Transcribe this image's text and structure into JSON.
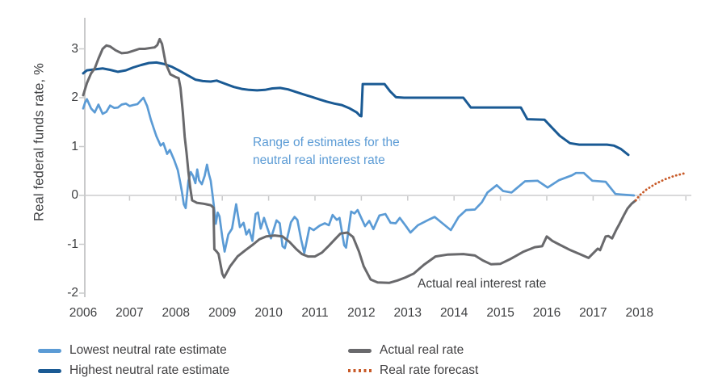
{
  "chart_data": {
    "type": "line",
    "title": "",
    "ylabel": "Real federal funds rate, %",
    "xlabel": "",
    "y_ticks": [
      3,
      2,
      1,
      0,
      -1,
      -2
    ],
    "x_ticks": [
      2006,
      2007,
      2008,
      2009,
      2010,
      2011,
      2012,
      2013,
      2014,
      2015,
      2016,
      2017,
      2018
    ],
    "ylim": [
      -2.2,
      3.3
    ],
    "xlim": [
      2006,
      2019.1
    ],
    "grid": "zero-line-only",
    "legend_position": "bottom",
    "colors": {
      "axis": "#c9cacb",
      "grid": "#d9d9da"
    },
    "annotations": [
      {
        "id": "range",
        "color": "#5b9bd5",
        "lines": [
          "Range of estimates for the",
          "neutral real interest rate"
        ]
      },
      {
        "id": "actual",
        "color": "#3f4042",
        "lines": [
          "Actual real interest rate"
        ]
      }
    ],
    "series": [
      {
        "id": "lowest",
        "name": "Lowest neutral rate estimate",
        "color": "#5b9bd5",
        "style": "solid",
        "width": 2.7,
        "points": [
          [
            2006.0,
            1.78
          ],
          [
            2006.04,
            1.9
          ],
          [
            2006.08,
            1.97
          ],
          [
            2006.17,
            1.78
          ],
          [
            2006.25,
            1.7
          ],
          [
            2006.33,
            1.86
          ],
          [
            2006.42,
            1.67
          ],
          [
            2006.5,
            1.71
          ],
          [
            2006.58,
            1.84
          ],
          [
            2006.67,
            1.79
          ],
          [
            2006.75,
            1.8
          ],
          [
            2006.83,
            1.86
          ],
          [
            2006.92,
            1.88
          ],
          [
            2007.0,
            1.83
          ],
          [
            2007.08,
            1.85
          ],
          [
            2007.17,
            1.87
          ],
          [
            2007.25,
            1.95
          ],
          [
            2007.3,
            2.0
          ],
          [
            2007.38,
            1.83
          ],
          [
            2007.46,
            1.55
          ],
          [
            2007.52,
            1.38
          ],
          [
            2007.58,
            1.21
          ],
          [
            2007.67,
            1.02
          ],
          [
            2007.73,
            1.07
          ],
          [
            2007.81,
            0.85
          ],
          [
            2007.87,
            0.93
          ],
          [
            2007.96,
            0.73
          ],
          [
            2008.04,
            0.52
          ],
          [
            2008.09,
            0.28
          ],
          [
            2008.13,
            0.07
          ],
          [
            2008.17,
            -0.18
          ],
          [
            2008.21,
            -0.26
          ],
          [
            2008.27,
            0.3
          ],
          [
            2008.32,
            0.48
          ],
          [
            2008.37,
            0.4
          ],
          [
            2008.42,
            0.25
          ],
          [
            2008.46,
            0.53
          ],
          [
            2008.5,
            0.31
          ],
          [
            2008.56,
            0.23
          ],
          [
            2008.62,
            0.4
          ],
          [
            2008.67,
            0.63
          ],
          [
            2008.71,
            0.44
          ],
          [
            2008.75,
            0.3
          ],
          [
            2008.79,
            0.02
          ],
          [
            2008.83,
            -0.3
          ],
          [
            2008.86,
            -0.58
          ],
          [
            2008.9,
            -0.35
          ],
          [
            2008.94,
            -0.43
          ],
          [
            2009.0,
            -0.85
          ],
          [
            2009.05,
            -1.15
          ],
          [
            2009.13,
            -0.8
          ],
          [
            2009.21,
            -0.68
          ],
          [
            2009.3,
            -0.18
          ],
          [
            2009.38,
            -0.65
          ],
          [
            2009.46,
            -0.56
          ],
          [
            2009.52,
            -0.8
          ],
          [
            2009.58,
            -0.7
          ],
          [
            2009.65,
            -0.93
          ],
          [
            2009.72,
            -0.38
          ],
          [
            2009.77,
            -0.35
          ],
          [
            2009.83,
            -0.68
          ],
          [
            2009.9,
            -0.46
          ],
          [
            2009.97,
            -0.66
          ],
          [
            2010.05,
            -0.88
          ],
          [
            2010.17,
            -0.51
          ],
          [
            2010.24,
            -0.57
          ],
          [
            2010.3,
            -1.04
          ],
          [
            2010.35,
            -1.08
          ],
          [
            2010.48,
            -0.55
          ],
          [
            2010.56,
            -0.44
          ],
          [
            2010.62,
            -0.5
          ],
          [
            2010.7,
            -0.9
          ],
          [
            2010.77,
            -1.18
          ],
          [
            2010.88,
            -0.66
          ],
          [
            2010.97,
            -0.71
          ],
          [
            2011.1,
            -0.62
          ],
          [
            2011.21,
            -0.57
          ],
          [
            2011.3,
            -0.61
          ],
          [
            2011.38,
            -0.4
          ],
          [
            2011.47,
            -0.5
          ],
          [
            2011.53,
            -0.46
          ],
          [
            2011.63,
            -1.02
          ],
          [
            2011.67,
            -1.07
          ],
          [
            2011.78,
            -0.33
          ],
          [
            2011.85,
            -0.37
          ],
          [
            2011.92,
            -0.3
          ],
          [
            2012.08,
            -0.63
          ],
          [
            2012.17,
            -0.52
          ],
          [
            2012.26,
            -0.69
          ],
          [
            2012.39,
            -0.41
          ],
          [
            2012.52,
            -0.38
          ],
          [
            2012.63,
            -0.56
          ],
          [
            2012.74,
            -0.57
          ],
          [
            2012.83,
            -0.46
          ],
          [
            2012.97,
            -0.64
          ],
          [
            2013.06,
            -0.76
          ],
          [
            2013.22,
            -0.61
          ],
          [
            2013.47,
            -0.49
          ],
          [
            2013.58,
            -0.44
          ],
          [
            2013.75,
            -0.57
          ],
          [
            2013.93,
            -0.71
          ],
          [
            2014.1,
            -0.44
          ],
          [
            2014.26,
            -0.3
          ],
          [
            2014.45,
            -0.29
          ],
          [
            2014.6,
            -0.14
          ],
          [
            2014.72,
            0.06
          ],
          [
            2014.92,
            0.21
          ],
          [
            2015.06,
            0.09
          ],
          [
            2015.24,
            0.06
          ],
          [
            2015.53,
            0.29
          ],
          [
            2015.8,
            0.3
          ],
          [
            2016.02,
            0.16
          ],
          [
            2016.26,
            0.31
          ],
          [
            2016.54,
            0.41
          ],
          [
            2016.63,
            0.46
          ],
          [
            2016.8,
            0.46
          ],
          [
            2016.98,
            0.3
          ],
          [
            2017.27,
            0.28
          ],
          [
            2017.48,
            0.03
          ],
          [
            2017.6,
            0.02
          ],
          [
            2017.88,
            0.0
          ]
        ]
      },
      {
        "id": "highest",
        "name": "Highest neutral rate estimate",
        "color": "#1a5a94",
        "style": "solid",
        "width": 3,
        "points": [
          [
            2006.0,
            2.5
          ],
          [
            2006.08,
            2.56
          ],
          [
            2006.25,
            2.58
          ],
          [
            2006.42,
            2.6
          ],
          [
            2006.58,
            2.57
          ],
          [
            2006.75,
            2.53
          ],
          [
            2006.92,
            2.56
          ],
          [
            2007.08,
            2.62
          ],
          [
            2007.25,
            2.67
          ],
          [
            2007.42,
            2.71
          ],
          [
            2007.58,
            2.72
          ],
          [
            2007.75,
            2.69
          ],
          [
            2007.92,
            2.63
          ],
          [
            2008.08,
            2.55
          ],
          [
            2008.25,
            2.46
          ],
          [
            2008.42,
            2.37
          ],
          [
            2008.58,
            2.34
          ],
          [
            2008.75,
            2.33
          ],
          [
            2008.88,
            2.35
          ],
          [
            2009.08,
            2.28
          ],
          [
            2009.25,
            2.22
          ],
          [
            2009.42,
            2.18
          ],
          [
            2009.58,
            2.16
          ],
          [
            2009.75,
            2.15
          ],
          [
            2009.92,
            2.16
          ],
          [
            2010.08,
            2.19
          ],
          [
            2010.25,
            2.2
          ],
          [
            2010.42,
            2.17
          ],
          [
            2010.58,
            2.12
          ],
          [
            2010.75,
            2.07
          ],
          [
            2010.92,
            2.02
          ],
          [
            2011.08,
            1.97
          ],
          [
            2011.25,
            1.92
          ],
          [
            2011.42,
            1.88
          ],
          [
            2011.58,
            1.85
          ],
          [
            2011.75,
            1.78
          ],
          [
            2011.9,
            1.7
          ],
          [
            2011.97,
            1.63
          ],
          [
            2012.0,
            1.62
          ],
          [
            2012.03,
            2.28
          ],
          [
            2012.5,
            2.28
          ],
          [
            2012.62,
            2.13
          ],
          [
            2012.75,
            2.01
          ],
          [
            2012.92,
            2.0
          ],
          [
            2014.2,
            2.0
          ],
          [
            2014.36,
            1.8
          ],
          [
            2015.44,
            1.8
          ],
          [
            2015.58,
            1.56
          ],
          [
            2015.95,
            1.55
          ],
          [
            2016.1,
            1.4
          ],
          [
            2016.28,
            1.22
          ],
          [
            2016.5,
            1.07
          ],
          [
            2016.7,
            1.04
          ],
          [
            2017.3,
            1.04
          ],
          [
            2017.45,
            1.02
          ],
          [
            2017.6,
            0.95
          ],
          [
            2017.76,
            0.83
          ]
        ]
      },
      {
        "id": "actual",
        "name": "Actual real rate",
        "color": "#69696c",
        "style": "solid",
        "width": 3,
        "points": [
          [
            2006.0,
            2.05
          ],
          [
            2006.08,
            2.3
          ],
          [
            2006.17,
            2.5
          ],
          [
            2006.25,
            2.6
          ],
          [
            2006.33,
            2.8
          ],
          [
            2006.42,
            3.0
          ],
          [
            2006.5,
            3.07
          ],
          [
            2006.58,
            3.05
          ],
          [
            2006.7,
            2.97
          ],
          [
            2006.83,
            2.91
          ],
          [
            2006.95,
            2.92
          ],
          [
            2007.08,
            2.96
          ],
          [
            2007.21,
            3.0
          ],
          [
            2007.33,
            3.0
          ],
          [
            2007.46,
            3.02
          ],
          [
            2007.54,
            3.03
          ],
          [
            2007.6,
            3.08
          ],
          [
            2007.65,
            3.2
          ],
          [
            2007.7,
            3.1
          ],
          [
            2007.78,
            2.7
          ],
          [
            2007.88,
            2.48
          ],
          [
            2008.0,
            2.42
          ],
          [
            2008.06,
            2.4
          ],
          [
            2008.1,
            2.2
          ],
          [
            2008.15,
            1.7
          ],
          [
            2008.19,
            1.2
          ],
          [
            2008.23,
            0.87
          ],
          [
            2008.27,
            0.48
          ],
          [
            2008.31,
            0.15
          ],
          [
            2008.35,
            -0.1
          ],
          [
            2008.45,
            -0.15
          ],
          [
            2008.6,
            -0.17
          ],
          [
            2008.75,
            -0.2
          ],
          [
            2008.81,
            -0.25
          ],
          [
            2008.83,
            -1.1
          ],
          [
            2008.88,
            -1.15
          ],
          [
            2008.92,
            -1.2
          ],
          [
            2009.0,
            -1.6
          ],
          [
            2009.04,
            -1.68
          ],
          [
            2009.17,
            -1.45
          ],
          [
            2009.33,
            -1.25
          ],
          [
            2009.5,
            -1.12
          ],
          [
            2009.67,
            -1.0
          ],
          [
            2009.8,
            -0.9
          ],
          [
            2009.95,
            -0.84
          ],
          [
            2010.13,
            -0.82
          ],
          [
            2010.3,
            -0.84
          ],
          [
            2010.45,
            -0.95
          ],
          [
            2010.6,
            -1.1
          ],
          [
            2010.72,
            -1.2
          ],
          [
            2010.85,
            -1.25
          ],
          [
            2011.0,
            -1.25
          ],
          [
            2011.15,
            -1.17
          ],
          [
            2011.3,
            -1.03
          ],
          [
            2011.45,
            -0.88
          ],
          [
            2011.55,
            -0.78
          ],
          [
            2011.7,
            -0.76
          ],
          [
            2011.82,
            -0.85
          ],
          [
            2011.95,
            -1.15
          ],
          [
            2012.05,
            -1.45
          ],
          [
            2012.2,
            -1.72
          ],
          [
            2012.35,
            -1.78
          ],
          [
            2012.6,
            -1.79
          ],
          [
            2012.78,
            -1.74
          ],
          [
            2012.95,
            -1.68
          ],
          [
            2013.13,
            -1.6
          ],
          [
            2013.35,
            -1.42
          ],
          [
            2013.6,
            -1.25
          ],
          [
            2013.87,
            -1.21
          ],
          [
            2014.2,
            -1.2
          ],
          [
            2014.45,
            -1.23
          ],
          [
            2014.62,
            -1.33
          ],
          [
            2014.8,
            -1.41
          ],
          [
            2015.0,
            -1.4
          ],
          [
            2015.22,
            -1.3
          ],
          [
            2015.5,
            -1.15
          ],
          [
            2015.74,
            -1.06
          ],
          [
            2015.9,
            -1.04
          ],
          [
            2016.0,
            -0.84
          ],
          [
            2016.12,
            -0.93
          ],
          [
            2016.26,
            -1.0
          ],
          [
            2016.49,
            -1.11
          ],
          [
            2016.71,
            -1.2
          ],
          [
            2016.9,
            -1.28
          ],
          [
            2017.1,
            -1.09
          ],
          [
            2017.15,
            -1.12
          ],
          [
            2017.27,
            -0.84
          ],
          [
            2017.33,
            -0.83
          ],
          [
            2017.41,
            -0.88
          ],
          [
            2017.5,
            -0.7
          ],
          [
            2017.57,
            -0.58
          ],
          [
            2017.66,
            -0.41
          ],
          [
            2017.74,
            -0.27
          ],
          [
            2017.83,
            -0.17
          ],
          [
            2017.92,
            -0.1
          ]
        ]
      },
      {
        "id": "forecast",
        "name": "Real rate forecast",
        "color": "#c85a28",
        "style": "dotted",
        "width": 2.8,
        "points": [
          [
            2017.92,
            -0.1
          ],
          [
            2018.0,
            0.0
          ],
          [
            2018.15,
            0.12
          ],
          [
            2018.35,
            0.24
          ],
          [
            2018.55,
            0.33
          ],
          [
            2018.75,
            0.4
          ],
          [
            2019.0,
            0.46
          ]
        ]
      }
    ]
  },
  "legend": {
    "left_column": [
      "Lowest neutral rate estimate",
      "Highest neutral rate estimate"
    ],
    "right_column": [
      "Actual real rate",
      "Real rate forecast"
    ]
  }
}
